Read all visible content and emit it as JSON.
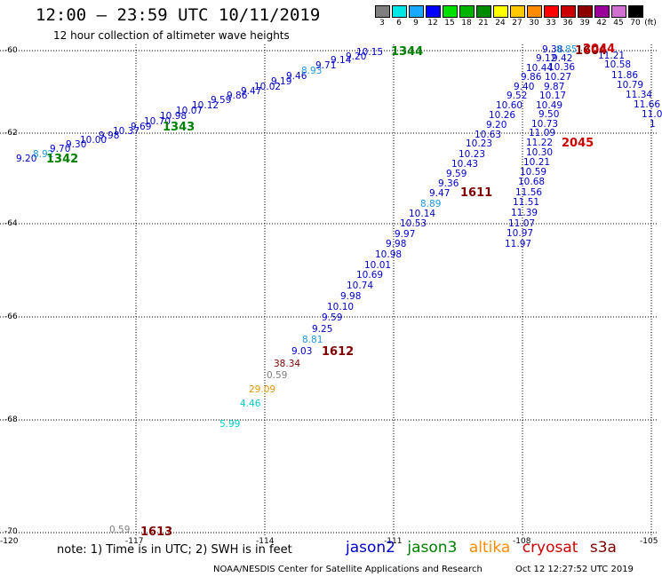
{
  "title": "12:00 – 23:59 UTC 10/11/2019",
  "subtitle": "12 hour collection of altimeter wave heights",
  "legend": {
    "swatches": [
      {
        "label": "3",
        "color": "#7f7f7f"
      },
      {
        "label": "6",
        "color": "#00e5e5"
      },
      {
        "label": "9",
        "color": "#19a9ff"
      },
      {
        "label": "12",
        "color": "#0000ff"
      },
      {
        "label": "15",
        "color": "#00e000"
      },
      {
        "label": "18",
        "color": "#00b400"
      },
      {
        "label": "21",
        "color": "#008a00"
      },
      {
        "label": "24",
        "color": "#ffff00"
      },
      {
        "label": "27",
        "color": "#ffc800"
      },
      {
        "label": "30",
        "color": "#ff8c00"
      },
      {
        "label": "33",
        "color": "#ff0000"
      },
      {
        "label": "36",
        "color": "#cc0000"
      },
      {
        "label": "39",
        "color": "#8c0000"
      },
      {
        "label": "42",
        "color": "#9b009b"
      },
      {
        "label": "45",
        "color": "#d070d0"
      },
      {
        "label": "70",
        "color": "#000000"
      }
    ],
    "unit": "(ft)"
  },
  "axes": {
    "lat_labels": [
      "-60",
      "-62",
      "-64",
      "-66",
      "-68",
      "-70"
    ],
    "lon_labels": [
      "-120",
      "-117",
      "-114",
      "-111",
      "-108",
      "-105"
    ]
  },
  "colors": {
    "jason2": "#0000cc",
    "jason3": "#008000",
    "altika": "#ff8c00",
    "cryosat": "#cc0000",
    "s3a": "#800000",
    "grey": "#7f7f7f",
    "cyan": "#00cccc",
    "lightblue": "#1e96dc",
    "orange": "#e69600"
  },
  "heights": [
    {
      "t": "9.20",
      "c": "jason2"
    },
    {
      "t": "8.92",
      "c": "lightblue"
    },
    {
      "t": "9.70",
      "c": "jason2"
    },
    {
      "t": "9.30",
      "c": "jason2"
    },
    {
      "t": "10.00",
      "c": "jason2"
    },
    {
      "t": "9.98",
      "c": "jason2"
    },
    {
      "t": "10.37",
      "c": "jason2"
    },
    {
      "t": "9.69",
      "c": "jason2"
    },
    {
      "t": "10.70",
      "c": "jason2"
    },
    {
      "t": "10.98",
      "c": "jason2"
    },
    {
      "t": "10.07",
      "c": "jason2"
    },
    {
      "t": "10.12",
      "c": "jason2"
    },
    {
      "t": "9.59",
      "c": "jason2"
    },
    {
      "t": "9.86",
      "c": "jason2"
    },
    {
      "t": "9.47",
      "c": "jason2"
    },
    {
      "t": "10.02",
      "c": "jason2"
    },
    {
      "t": "9.19",
      "c": "jason2"
    },
    {
      "t": "9.46",
      "c": "jason2"
    },
    {
      "t": "8.93",
      "c": "lightblue"
    },
    {
      "t": "9.71",
      "c": "jason2"
    },
    {
      "t": "9.14",
      "c": "jason2"
    },
    {
      "t": "9.20",
      "c": "jason2"
    },
    {
      "t": "10.15",
      "c": "jason2"
    },
    {
      "t": "10.63",
      "c": "jason2"
    },
    {
      "t": "10.23",
      "c": "jason2"
    },
    {
      "t": "10.23",
      "c": "jason2"
    },
    {
      "t": "10.43",
      "c": "jason2"
    },
    {
      "t": "9.59",
      "c": "jason2"
    },
    {
      "t": "9.36",
      "c": "jason2"
    },
    {
      "t": "9.47",
      "c": "jason2"
    },
    {
      "t": "8.89",
      "c": "lightblue"
    },
    {
      "t": "10.14",
      "c": "jason2"
    },
    {
      "t": "10.53",
      "c": "jason2"
    },
    {
      "t": "9.97",
      "c": "jason2"
    },
    {
      "t": "9.98",
      "c": "jason2"
    },
    {
      "t": "10.98",
      "c": "jason2"
    },
    {
      "t": "10.01",
      "c": "jason2"
    },
    {
      "t": "10.69",
      "c": "jason2"
    },
    {
      "t": "10.74",
      "c": "jason2"
    },
    {
      "t": "9.98",
      "c": "jason2"
    },
    {
      "t": "10.10",
      "c": "jason2"
    },
    {
      "t": "9.59",
      "c": "jason2"
    },
    {
      "t": "9.25",
      "c": "jason2"
    },
    {
      "t": "8.81",
      "c": "lightblue"
    },
    {
      "t": "9.03",
      "c": "jason2"
    },
    {
      "t": "38.34",
      "c": "s3a"
    },
    {
      "t": "0.59",
      "c": "grey"
    },
    {
      "t": "29.09",
      "c": "orange"
    },
    {
      "t": "4.46",
      "c": "cyan"
    },
    {
      "t": "5.99",
      "c": "cyan"
    },
    {
      "t": "0.59",
      "c": "grey"
    },
    {
      "t": "10.60",
      "c": "jason2"
    },
    {
      "t": "10.26",
      "c": "jason2"
    },
    {
      "t": "9.20",
      "c": "jason2"
    },
    {
      "t": "9.52",
      "c": "jason2"
    },
    {
      "t": "9.40",
      "c": "jason2"
    },
    {
      "t": "9.86",
      "c": "jason2"
    },
    {
      "t": "10.44",
      "c": "jason2"
    },
    {
      "t": "9.12",
      "c": "jason2"
    },
    {
      "t": "9.38",
      "c": "jason2"
    },
    {
      "t": "8.85",
      "c": "lightblue"
    },
    {
      "t": "9.42",
      "c": "jason2"
    },
    {
      "t": "10.36",
      "c": "jason2"
    },
    {
      "t": "10.27",
      "c": "jason2"
    },
    {
      "t": "9.87",
      "c": "jason2"
    },
    {
      "t": "10.17",
      "c": "jason2"
    },
    {
      "t": "10.49",
      "c": "jason2"
    },
    {
      "t": "9.50",
      "c": "jason2"
    },
    {
      "t": "10.73",
      "c": "jason2"
    },
    {
      "t": "11.09",
      "c": "jason2"
    },
    {
      "t": "11.22",
      "c": "jason2"
    },
    {
      "t": "10.30",
      "c": "jason2"
    },
    {
      "t": "10.21",
      "c": "jason2"
    },
    {
      "t": "10.59",
      "c": "jason2"
    },
    {
      "t": "10.68",
      "c": "jason2"
    },
    {
      "t": "11.56",
      "c": "jason2"
    },
    {
      "t": "11.51",
      "c": "jason2"
    },
    {
      "t": "11.39",
      "c": "jason2"
    },
    {
      "t": "11.07",
      "c": "jason2"
    },
    {
      "t": "10.97",
      "c": "jason2"
    },
    {
      "t": "11.97",
      "c": "jason2"
    },
    {
      "t": "11.21",
      "c": "jason2"
    },
    {
      "t": "10.58",
      "c": "jason2"
    },
    {
      "t": "11.86",
      "c": "jason2"
    },
    {
      "t": "10.79",
      "c": "jason2"
    },
    {
      "t": "11.34",
      "c": "jason2"
    },
    {
      "t": "11.66",
      "c": "jason2"
    },
    {
      "t": "11.0",
      "c": "jason2"
    },
    {
      "t": "1",
      "c": "jason2"
    }
  ],
  "passes": [
    {
      "t": "1342",
      "c": "jason3"
    },
    {
      "t": "1343",
      "c": "jason3"
    },
    {
      "t": "1344",
      "c": "jason3"
    },
    {
      "t": "1611",
      "c": "s3a"
    },
    {
      "t": "1612",
      "c": "s3a"
    },
    {
      "t": "1613",
      "c": "s3a"
    },
    {
      "t": "1604",
      "c": "s3a"
    },
    {
      "t": "2044",
      "c": "cryosat"
    },
    {
      "t": "2045",
      "c": "cryosat"
    }
  ],
  "note": "note: 1) Time is in UTC; 2) SWH is in feet",
  "satellites": [
    "jason2",
    "jason3",
    "altika",
    "cryosat",
    "s3a"
  ],
  "footer_left": "NOAA/NESDIS Center for Satellite Applications and Research",
  "footer_right": "Oct 12 12:27:52 UTC 2019"
}
